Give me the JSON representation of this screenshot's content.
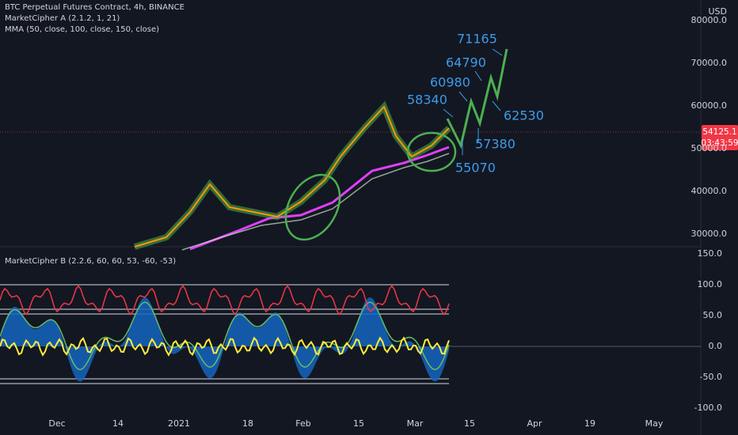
{
  "header": {
    "symbol": "BTC Perpetual Futures Contract, 4h, BINANCE",
    "indicator_a": "MarketCipher A (2.1.2, 1, 21)",
    "mma": "MMA (50, close, 100, close, 150, close)",
    "indicator_b": "MarketCipher B (2.2.6, 60, 60, 53, -60, -53)",
    "currency": "USD"
  },
  "price_axis": {
    "ticks": [
      {
        "value": 80000,
        "label": "80000.0"
      },
      {
        "value": 70000,
        "label": "70000.0"
      },
      {
        "value": 60000,
        "label": "60000.0"
      },
      {
        "value": 50000,
        "label": "50000.0"
      },
      {
        "value": 40000,
        "label": "40000.0"
      },
      {
        "value": 30000,
        "label": "30000.0"
      }
    ]
  },
  "oscillator_axis": {
    "ticks": [
      {
        "value": 150,
        "label": "150.0"
      },
      {
        "value": 100,
        "label": "100.0"
      },
      {
        "value": 50,
        "label": "50.0"
      },
      {
        "value": 0,
        "label": "0.0"
      },
      {
        "value": -50,
        "label": "-50.0"
      },
      {
        "value": -100,
        "label": "-100.0"
      }
    ]
  },
  "time_axis": {
    "labels": [
      "Dec",
      "14",
      "2021",
      "18",
      "Feb",
      "15",
      "Mar",
      "15",
      "Apr",
      "19",
      "May"
    ]
  },
  "last_price": {
    "price": "54125.1",
    "countdown": "03:43:59"
  },
  "annotations": [
    71165,
    64790,
    60980,
    58340,
    62530,
    57380,
    55070
  ]
}
